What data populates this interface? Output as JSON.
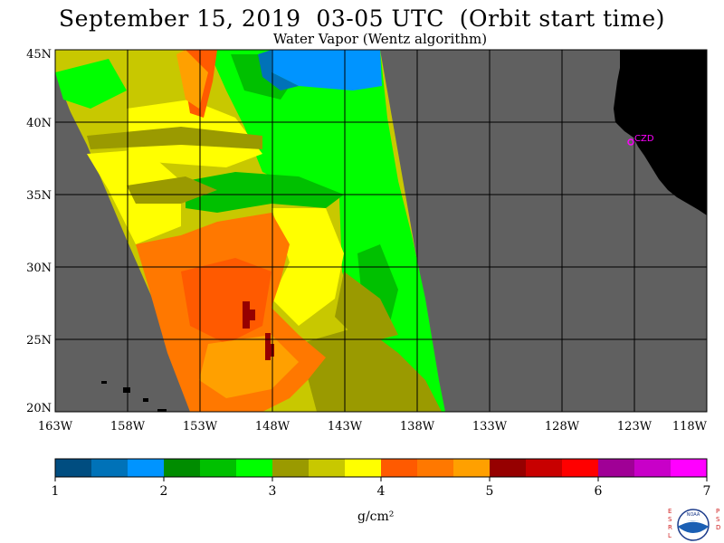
{
  "header": {
    "title": "September 15, 2019  03-05 UTC  (Orbit start time)",
    "subtitle": "Water Vapor (Wentz algorithm)"
  },
  "map": {
    "lat_labels": [
      "45N",
      "40N",
      "35N",
      "30N",
      "25N",
      "20N"
    ],
    "lon_labels": [
      "163W",
      "158W",
      "153W",
      "148W",
      "143W",
      "138W",
      "133W",
      "128W",
      "123W",
      "118W"
    ],
    "station_label": "CZD",
    "colors": {
      "no_data": "#606060",
      "land": "#000000",
      "grid": "#000000",
      "station": "#ff00ff"
    }
  },
  "colorbar": {
    "ticks": [
      "1",
      "2",
      "3",
      "4",
      "5",
      "6",
      "7"
    ],
    "unit": "g/cm²",
    "colors": [
      "#004d80",
      "#0072b8",
      "#0094ff",
      "#008c00",
      "#00c000",
      "#00ff00",
      "#9a9a00",
      "#c8c800",
      "#ffff00",
      "#ff5a00",
      "#ff7800",
      "#ffa000",
      "#960000",
      "#c80000",
      "#ff0000",
      "#a00096",
      "#c800c8",
      "#ff00ff"
    ]
  },
  "logo": {
    "left_letters": "ESRL",
    "right_letters": "PSD",
    "center_text": "NOAA"
  }
}
